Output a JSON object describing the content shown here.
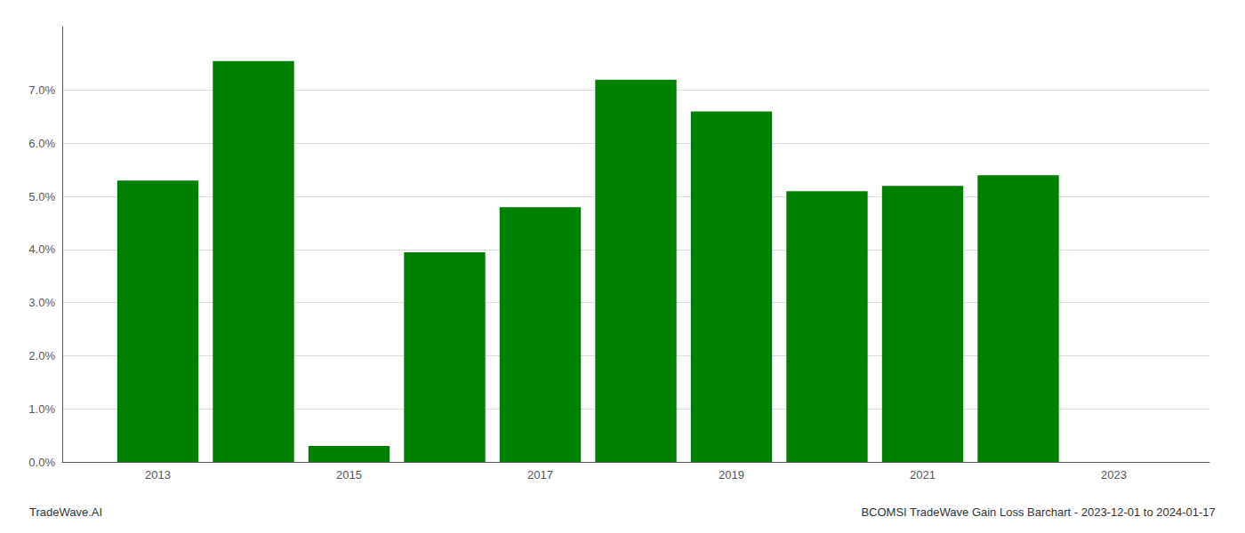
{
  "chart_data": {
    "type": "bar",
    "title": "BCOMSI TradeWave Gain Loss Barchart - 2023-12-01 to 2024-01-17",
    "annotations": [
      "TradeWave.AI"
    ],
    "x": [
      2013,
      2014,
      2015,
      2016,
      2017,
      2018,
      2019,
      2020,
      2021,
      2022
    ],
    "values": [
      0.053,
      0.0755,
      0.003,
      0.0395,
      0.048,
      0.072,
      0.066,
      0.051,
      0.052,
      0.054
    ],
    "color": "#008000",
    "xlim": [
      2012,
      2024
    ],
    "xticks": [
      2013,
      2015,
      2017,
      2019,
      2021,
      2023
    ],
    "ylim": [
      0.0,
      0.082
    ],
    "yticks": [
      {
        "value": 0.0,
        "label": "0.0%"
      },
      {
        "value": 0.01,
        "label": "1.0%"
      },
      {
        "value": 0.02,
        "label": "2.0%"
      },
      {
        "value": 0.03,
        "label": "3.0%"
      },
      {
        "value": 0.04,
        "label": "4.0%"
      },
      {
        "value": 0.05,
        "label": "5.0%"
      },
      {
        "value": 0.06,
        "label": "6.0%"
      },
      {
        "value": 0.07,
        "label": "7.0%"
      }
    ],
    "grid": true
  }
}
